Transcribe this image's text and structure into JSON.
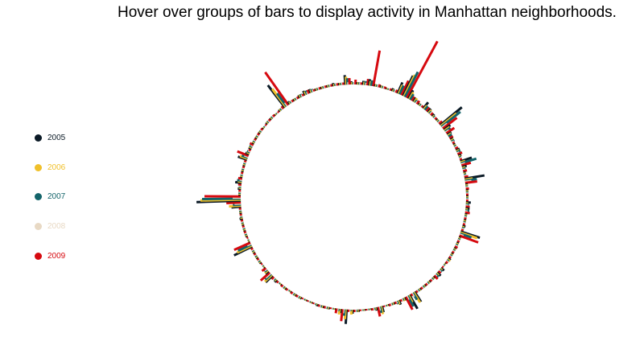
{
  "title": "Hover over groups of bars to display activity in Manhattan neighborhoods.",
  "legend": [
    {
      "label": "2005",
      "color": "#0b1a26"
    },
    {
      "label": "2006",
      "color": "#f0c02a"
    },
    {
      "label": "2007",
      "color": "#13646a"
    },
    {
      "label": "2008",
      "color": "#e8d9c4"
    },
    {
      "label": "2009",
      "color": "#d6090f"
    }
  ],
  "chart_data": {
    "type": "bar",
    "layout": "radial",
    "series": [
      {
        "name": "2005",
        "color": "#0b1a26"
      },
      {
        "name": "2006",
        "color": "#f0c02a"
      },
      {
        "name": "2007",
        "color": "#13646a"
      },
      {
        "name": "2008",
        "color": "#e8d9c4"
      },
      {
        "name": "2009",
        "color": "#d6090f"
      }
    ],
    "groups": [
      [
        4,
        3,
        3,
        3,
        6
      ],
      [
        3,
        3,
        3,
        3,
        3
      ],
      [
        5,
        4,
        5,
        3,
        8
      ],
      [
        8,
        6,
        7,
        0,
        45
      ],
      [
        3,
        3,
        3,
        3,
        4
      ],
      [
        3,
        3,
        3,
        3,
        3
      ],
      [
        2,
        2,
        2,
        2,
        3
      ],
      [
        4,
        3,
        3,
        3,
        4
      ],
      [
        15,
        12,
        12,
        0,
        20
      ],
      [
        28,
        30,
        35,
        0,
        80
      ],
      [
        12,
        10,
        8,
        0,
        6
      ],
      [
        6,
        6,
        4,
        3,
        5
      ],
      [
        3,
        3,
        3,
        3,
        3
      ],
      [
        10,
        6,
        6,
        0,
        6
      ],
      [
        6,
        5,
        4,
        4,
        4
      ],
      [
        4,
        3,
        3,
        3,
        3
      ],
      [
        3,
        3,
        3,
        3,
        5
      ],
      [
        35,
        25,
        30,
        8,
        22
      ],
      [
        10,
        8,
        8,
        5,
        12
      ],
      [
        6,
        5,
        5,
        0,
        5
      ],
      [
        4,
        4,
        4,
        3,
        3
      ],
      [
        3,
        3,
        3,
        3,
        4
      ],
      [
        5,
        4,
        5,
        3,
        6
      ],
      [
        4,
        3,
        3,
        3,
        3
      ],
      [
        15,
        6,
        20,
        5,
        12
      ],
      [
        6,
        4,
        4,
        3,
        5
      ],
      [
        3,
        3,
        3,
        3,
        5
      ],
      [
        25,
        10,
        15,
        8,
        15
      ],
      [
        3,
        3,
        3,
        3,
        4
      ],
      [
        3,
        3,
        3,
        3,
        3
      ],
      [
        3,
        3,
        3,
        3,
        3
      ],
      [
        6,
        3,
        4,
        3,
        5
      ],
      [
        5,
        3,
        5,
        3,
        6
      ],
      [
        3,
        3,
        3,
        3,
        3
      ],
      [
        3,
        3,
        3,
        3,
        3
      ],
      [
        4,
        3,
        3,
        3,
        3
      ],
      [
        25,
        22,
        15,
        5,
        25
      ],
      [
        3,
        3,
        3,
        3,
        3
      ],
      [
        3,
        3,
        3,
        3,
        4
      ],
      [
        3,
        3,
        3,
        3,
        3
      ],
      [
        3,
        3,
        3,
        3,
        3
      ],
      [
        4,
        4,
        3,
        3,
        3
      ],
      [
        2,
        2,
        2,
        2,
        2
      ],
      [
        5,
        3,
        4,
        3,
        4
      ],
      [
        6,
        4,
        5,
        3,
        6
      ],
      [
        3,
        3,
        3,
        3,
        3
      ],
      [
        3,
        3,
        3,
        3,
        3
      ],
      [
        3,
        3,
        3,
        3,
        3
      ],
      [
        3,
        3,
        3,
        3,
        3
      ],
      [
        15,
        15,
        10,
        5,
        3
      ],
      [
        20,
        10,
        15,
        5,
        18
      ],
      [
        4,
        4,
        3,
        3,
        3
      ],
      [
        6,
        5,
        4,
        3,
        3
      ],
      [
        3,
        3,
        3,
        3,
        3
      ],
      [
        2,
        2,
        2,
        2,
        2
      ],
      [
        8,
        10,
        8,
        5,
        12
      ],
      [
        4,
        3,
        3,
        3,
        3
      ],
      [
        2,
        2,
        2,
        2,
        2
      ],
      [
        2,
        2,
        2,
        2,
        2
      ],
      [
        3,
        3,
        3,
        3,
        3
      ],
      [
        5,
        6,
        2,
        2,
        3
      ],
      [
        18,
        12,
        8,
        5,
        15
      ],
      [
        5,
        7,
        3,
        3,
        6
      ],
      [
        2,
        2,
        2,
        2,
        2
      ],
      [
        3,
        3,
        3,
        3,
        3
      ],
      [
        3,
        3,
        3,
        3,
        3
      ],
      [
        3,
        2,
        2,
        2,
        2
      ],
      [
        2,
        2,
        2,
        2,
        2
      ],
      [
        2,
        2,
        2,
        2,
        2
      ],
      [
        3,
        3,
        3,
        3,
        3
      ],
      [
        3,
        3,
        3,
        3,
        3
      ],
      [
        2,
        2,
        2,
        2,
        3
      ],
      [
        3,
        3,
        3,
        3,
        3
      ],
      [
        2,
        2,
        2,
        2,
        3
      ],
      [
        4,
        3,
        3,
        3,
        4
      ],
      [
        12,
        12,
        10,
        8,
        15
      ],
      [
        5,
        5,
        4,
        3,
        6
      ],
      [
        2,
        2,
        2,
        2,
        2
      ],
      [
        3,
        3,
        3,
        3,
        3
      ],
      [
        3,
        3,
        3,
        3,
        3
      ],
      [
        3,
        3,
        3,
        3,
        3
      ],
      [
        25,
        20,
        18,
        5,
        22
      ],
      [
        2,
        2,
        2,
        2,
        2
      ],
      [
        3,
        3,
        3,
        3,
        3
      ],
      [
        3,
        3,
        3,
        3,
        3
      ],
      [
        3,
        3,
        3,
        3,
        3
      ],
      [
        4,
        3,
        3,
        3,
        3
      ],
      [
        3,
        3,
        3,
        3,
        3
      ],
      [
        12,
        15,
        10,
        8,
        18
      ],
      [
        55,
        50,
        48,
        10,
        45
      ],
      [
        3,
        3,
        3,
        3,
        3
      ],
      [
        4,
        3,
        3,
        3,
        4
      ],
      [
        8,
        5,
        6,
        3,
        5
      ],
      [
        3,
        3,
        3,
        3,
        3
      ],
      [
        3,
        3,
        3,
        3,
        3
      ],
      [
        3,
        3,
        3,
        3,
        3
      ],
      [
        12,
        10,
        8,
        5,
        15
      ],
      [
        5,
        4,
        4,
        3,
        3
      ],
      [
        4,
        4,
        4,
        3,
        5
      ],
      [
        3,
        3,
        3,
        3,
        3
      ],
      [
        3,
        3,
        3,
        3,
        3
      ],
      [
        3,
        3,
        3,
        3,
        3
      ],
      [
        2,
        2,
        2,
        2,
        2
      ],
      [
        3,
        3,
        3,
        3,
        3
      ],
      [
        3,
        3,
        3,
        3,
        3
      ],
      [
        2,
        2,
        2,
        2,
        2
      ],
      [
        3,
        3,
        3,
        3,
        4
      ],
      [
        35,
        28,
        20,
        5,
        50
      ],
      [
        4,
        3,
        3,
        3,
        3
      ],
      [
        3,
        3,
        3,
        3,
        3
      ],
      [
        4,
        4,
        4,
        3,
        3
      ],
      [
        6,
        5,
        5,
        3,
        5
      ],
      [
        5,
        4,
        4,
        3,
        3
      ],
      [
        3,
        3,
        3,
        3,
        3
      ],
      [
        3,
        3,
        3,
        3,
        3
      ],
      [
        3,
        3,
        3,
        3,
        3
      ],
      [
        4,
        3,
        3,
        3,
        3
      ],
      [
        3,
        3,
        3,
        3,
        3
      ],
      [
        12,
        10,
        8,
        3,
        8
      ]
    ]
  }
}
